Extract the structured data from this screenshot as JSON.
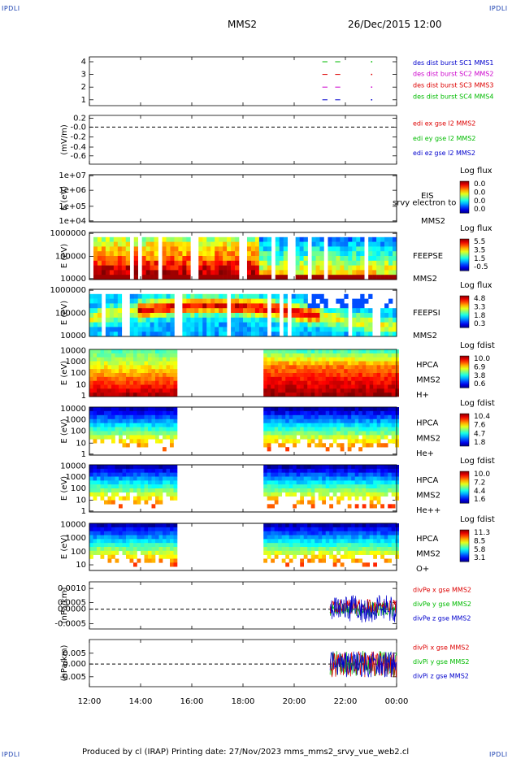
{
  "corners": {
    "tl": "IPDLI",
    "tr": "IPDLI",
    "bl": "IPDLI",
    "br": "IPDLI"
  },
  "header": {
    "spacecraft": "MMS2",
    "datetime": "26/Dec/2015 12:00"
  },
  "footer": "Produced by cl (IRAP)   Printing date: 27/Nov/2023   mms_mms2_srvy_vue_web2.cl",
  "chart_data": {
    "type": "spectrogram-stack",
    "x_ticks": [
      "12:00",
      "14:00",
      "16:00",
      "18:00",
      "20:00",
      "22:00",
      "00:00"
    ],
    "panels": [
      {
        "id": "burst",
        "type": "line",
        "ylabel": "",
        "yticks": [
          "4",
          "3",
          "2",
          "1"
        ],
        "legend": [
          {
            "text": "des dist burst SC1 MMS1",
            "color": "#0000cc"
          },
          {
            "text": "des dist burst SC2 MMS2",
            "color": "#cc00cc"
          },
          {
            "text": "des dist burst SC3 MMS3",
            "color": "#dd0000"
          },
          {
            "text": "des dist burst SC4 MMS4",
            "color": "#00bb00"
          }
        ]
      },
      {
        "id": "edi",
        "type": "line",
        "ylabel": "(mV/m)",
        "yticks": [
          "0.2",
          "-0.0",
          "-0.2",
          "-0.4",
          "-0.6"
        ],
        "legend": [
          {
            "text": "edi ex gse l2 MMS2",
            "color": "#dd0000"
          },
          {
            "text": "edi ey gse l2 MMS2",
            "color": "#00bb00"
          },
          {
            "text": "edi ez gse l2 MMS2",
            "color": "#0000cc"
          }
        ]
      },
      {
        "id": "eis",
        "type": "heatmap",
        "ylabel": "E (eV)",
        "yticks": [
          "1e+07",
          "1e+06",
          "1e+05",
          "1e+04"
        ],
        "side": [
          "EIS",
          "MMS2"
        ],
        "overlay": "srvy electron to",
        "cbar_title": "Log flux",
        "cbar_ticks": [
          "0.0",
          "0.0",
          "0.0",
          "0.0"
        ]
      },
      {
        "id": "feepse",
        "type": "heatmap",
        "ylabel": "E (eV)",
        "yticks": [
          "1000000",
          "100000",
          "10000"
        ],
        "side": [
          "FEEPSE",
          "MMS2"
        ],
        "cbar_title": "Log flux",
        "cbar_ticks": [
          "5.5",
          "3.5",
          "1.5",
          "-0.5"
        ]
      },
      {
        "id": "feepsi",
        "type": "heatmap",
        "ylabel": "E (eV)",
        "yticks": [
          "1000000",
          "100000",
          "10000"
        ],
        "side": [
          "FEEPSI",
          "MMS2"
        ],
        "cbar_title": "Log flux",
        "cbar_ticks": [
          "4.8",
          "3.3",
          "1.8",
          "0.3"
        ]
      },
      {
        "id": "hpca_h",
        "type": "heatmap",
        "ylabel": "E (eV)",
        "yticks": [
          "10000",
          "1000",
          "100",
          "10",
          "1"
        ],
        "side": [
          "HPCA",
          "MMS2",
          "H+"
        ],
        "cbar_title": "Log fdist",
        "cbar_ticks": [
          "10.0",
          "6.9",
          "3.8",
          "0.6"
        ]
      },
      {
        "id": "hpca_he",
        "type": "heatmap",
        "ylabel": "E (eV)",
        "yticks": [
          "10000",
          "1000",
          "100",
          "10",
          "1"
        ],
        "side": [
          "HPCA",
          "MMS2",
          "He+"
        ],
        "cbar_title": "Log fdist",
        "cbar_ticks": [
          "10.4",
          "7.6",
          "4.7",
          "1.8"
        ]
      },
      {
        "id": "hpca_he2",
        "type": "heatmap",
        "ylabel": "E (eV)",
        "yticks": [
          "10000",
          "1000",
          "100",
          "10",
          "1"
        ],
        "side": [
          "HPCA",
          "MMS2",
          "He++"
        ],
        "cbar_title": "Log fdist",
        "cbar_ticks": [
          "10.0",
          "7.2",
          "4.4",
          "1.6"
        ]
      },
      {
        "id": "hpca_o",
        "type": "heatmap",
        "ylabel": "E (eV)",
        "yticks": [
          "10000",
          "1000",
          "100",
          "10"
        ],
        "side": [
          "HPCA",
          "MMS2",
          "O+"
        ],
        "cbar_title": "Log fdist",
        "cbar_ticks": [
          "11.3",
          "8.5",
          "5.8",
          "3.1"
        ]
      },
      {
        "id": "divpe",
        "type": "line",
        "ylabel": "(nPa/km)",
        "yticks": [
          "0.0010",
          "0.0005",
          "0.0000",
          "-0.0005"
        ],
        "legend": [
          {
            "text": "divPe x gse MMS2",
            "color": "#dd0000"
          },
          {
            "text": "divPe y gse MMS2",
            "color": "#00bb00"
          },
          {
            "text": "divPe z gse MMS2",
            "color": "#0000cc"
          }
        ]
      },
      {
        "id": "divpi",
        "type": "line",
        "ylabel": "(nPa/km)",
        "yticks": [
          "0.005",
          "0.000",
          "-0.005"
        ],
        "legend": [
          {
            "text": "divPi x gse MMS2",
            "color": "#dd0000"
          },
          {
            "text": "divPi y gse MMS2",
            "color": "#00bb00"
          },
          {
            "text": "divPi z gse MMS2",
            "color": "#0000cc"
          }
        ]
      }
    ]
  }
}
